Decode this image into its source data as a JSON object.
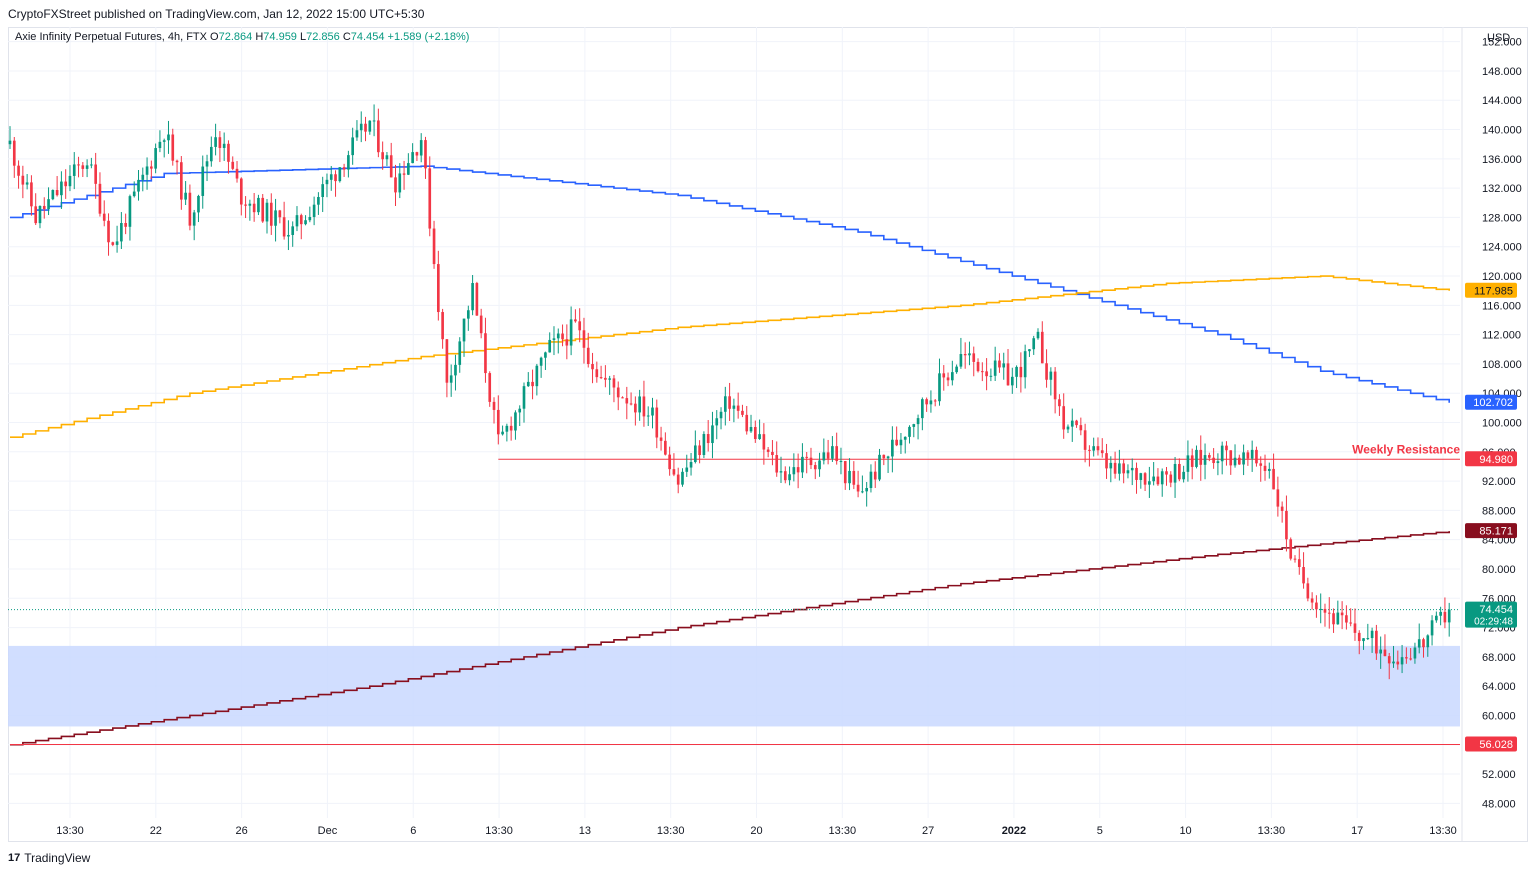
{
  "header": {
    "publisher": "CryptoFXStreet published on TradingView.com, Jan 12, 2022 15:00 UTC+5:30"
  },
  "legend": {
    "symbol": "Axie Infinity Perpetual Futures, 4h, FTX",
    "o_label": "O",
    "o_value": "72.864",
    "h_label": "H",
    "h_value": "74.959",
    "l_label": "L",
    "l_value": "72.856",
    "c_label": "C",
    "c_value": "74.454",
    "change": "+1.589 (+2.18%)"
  },
  "footer": {
    "brand": "TradingView",
    "logo": "17"
  },
  "colors": {
    "up": "#089981",
    "down": "#f23645",
    "blue_ma": "#2962ff",
    "orange_ma": "#ffb000",
    "maroon_ma": "#880e1e",
    "resistance": "#f23645",
    "zone": "#c9d8ff",
    "grid": "#f0f3fa"
  },
  "chart_data": {
    "type": "candlestick",
    "currency": "USD",
    "ylim": [
      46,
      154
    ],
    "y_ticks": [
      "48.000",
      "52.000",
      "56.000",
      "60.000",
      "64.000",
      "68.000",
      "72.000",
      "76.000",
      "80.000",
      "84.000",
      "88.000",
      "92.000",
      "96.000",
      "100.000",
      "104.000",
      "108.000",
      "112.000",
      "116.000",
      "120.000",
      "124.000",
      "128.000",
      "132.000",
      "136.000",
      "140.000",
      "144.000",
      "148.000",
      "152.000"
    ],
    "x_ticks": [
      "13:30",
      "22",
      "26",
      "Dec",
      "6",
      "13:30",
      "13",
      "13:30",
      "20",
      "13:30",
      "27",
      "2022",
      "5",
      "10",
      "13:30",
      "17",
      "13:30"
    ],
    "price_path": [
      {
        "date": "Nov 17",
        "price": 138
      },
      {
        "date": "Nov 18",
        "price": 128
      },
      {
        "date": "Nov 20",
        "price": 136
      },
      {
        "date": "Nov 21",
        "price": 124
      },
      {
        "date": "Nov 23",
        "price": 140
      },
      {
        "date": "Nov 24",
        "price": 128
      },
      {
        "date": "Nov 25",
        "price": 140
      },
      {
        "date": "Nov 26",
        "price": 131
      },
      {
        "date": "Nov 28",
        "price": 126
      },
      {
        "date": "Nov 30",
        "price": 136
      },
      {
        "date": "Dec 1",
        "price": 141
      },
      {
        "date": "Dec 2",
        "price": 133
      },
      {
        "date": "Dec 3",
        "price": 139
      },
      {
        "date": "Dec 4",
        "price": 105
      },
      {
        "date": "Dec 5",
        "price": 118
      },
      {
        "date": "Dec 6",
        "price": 97
      },
      {
        "date": "Dec 8",
        "price": 110
      },
      {
        "date": "Dec 9",
        "price": 113
      },
      {
        "date": "Dec 10",
        "price": 106
      },
      {
        "date": "Dec 12",
        "price": 101
      },
      {
        "date": "Dec 13",
        "price": 92
      },
      {
        "date": "Dec 15",
        "price": 103
      },
      {
        "date": "Dec 17",
        "price": 93
      },
      {
        "date": "Dec 19",
        "price": 96
      },
      {
        "date": "Dec 20",
        "price": 90
      },
      {
        "date": "Dec 22",
        "price": 100
      },
      {
        "date": "Dec 24",
        "price": 109
      },
      {
        "date": "Dec 26",
        "price": 106
      },
      {
        "date": "Dec 27",
        "price": 111
      },
      {
        "date": "Dec 28",
        "price": 100
      },
      {
        "date": "Dec 30",
        "price": 93
      },
      {
        "date": "Jan 1",
        "price": 93
      },
      {
        "date": "Jan 3",
        "price": 96
      },
      {
        "date": "Jan 5",
        "price": 94
      },
      {
        "date": "Jan 6",
        "price": 80
      },
      {
        "date": "Jan 7",
        "price": 75
      },
      {
        "date": "Jan 8",
        "price": 72
      },
      {
        "date": "Jan 10",
        "price": 68
      },
      {
        "date": "Jan 11",
        "price": 70
      },
      {
        "date": "Jan 12",
        "price": 74.454
      }
    ],
    "moving_averages": [
      {
        "name": "blue",
        "color": "#2962ff",
        "last_value": "102.702",
        "points": [
          {
            "date": "Nov 17",
            "value": 128
          },
          {
            "date": "Nov 23",
            "value": 134
          },
          {
            "date": "Dec 3",
            "value": 135
          },
          {
            "date": "Dec 13",
            "value": 131
          },
          {
            "date": "Dec 20",
            "value": 126
          },
          {
            "date": "Dec 27",
            "value": 119
          },
          {
            "date": "Jan 3",
            "value": 112
          },
          {
            "date": "Jan 7",
            "value": 107
          },
          {
            "date": "Jan 12",
            "value": 102.702
          }
        ]
      },
      {
        "name": "orange",
        "color": "#ffb000",
        "last_value": "117.985",
        "points": [
          {
            "date": "Nov 17",
            "value": 98
          },
          {
            "date": "Nov 24",
            "value": 104
          },
          {
            "date": "Dec 3",
            "value": 109
          },
          {
            "date": "Dec 13",
            "value": 113
          },
          {
            "date": "Dec 24",
            "value": 116
          },
          {
            "date": "Jan 1",
            "value": 119
          },
          {
            "date": "Jan 7",
            "value": 120
          },
          {
            "date": "Jan 12",
            "value": 117.985
          }
        ]
      },
      {
        "name": "maroon",
        "color": "#880e1e",
        "last_value": "85.171",
        "points": [
          {
            "date": "Nov 17",
            "value": 56
          },
          {
            "date": "Dec 1",
            "value": 64
          },
          {
            "date": "Dec 13",
            "value": 72
          },
          {
            "date": "Dec 24",
            "value": 78
          },
          {
            "date": "Jan 3",
            "value": 82
          },
          {
            "date": "Jan 12",
            "value": 85.171
          }
        ]
      }
    ],
    "horizontal_lines": [
      {
        "name": "Weekly Resistance",
        "value": 94.98,
        "label": "94.980",
        "start_date": "Dec 6"
      },
      {
        "name": "",
        "value": 56.028,
        "label": "56.028",
        "start_date": "Nov 17"
      }
    ],
    "zone": {
      "low": 58.5,
      "high": 69.5
    },
    "current_price": {
      "value": 74.454,
      "label": "74.454",
      "countdown": "02:29:48"
    },
    "annotations": [
      {
        "text": "Weekly Resistance",
        "value": 94.98
      }
    ]
  }
}
